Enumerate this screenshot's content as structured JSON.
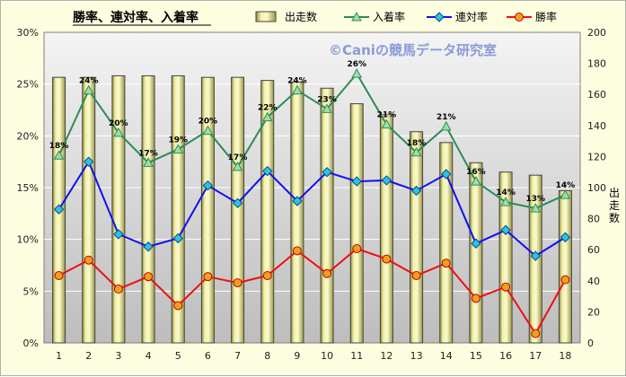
{
  "chart_data": {
    "type": "bar-line-combo",
    "title": "勝率、連対率、入着率",
    "watermark": "©Caniの競馬データ研究室",
    "categories": [
      "1",
      "2",
      "3",
      "4",
      "5",
      "6",
      "7",
      "8",
      "9",
      "10",
      "11",
      "12",
      "13",
      "14",
      "15",
      "16",
      "17",
      "18"
    ],
    "y_left": {
      "ylim": [
        0,
        30
      ],
      "ticks": [
        "0%",
        "5%",
        "10%",
        "15%",
        "20%",
        "25%",
        "30%"
      ]
    },
    "y_right": {
      "ylim": [
        0,
        200
      ],
      "ticks": [
        "0",
        "20",
        "40",
        "60",
        "80",
        "100",
        "120",
        "140",
        "160",
        "180",
        "200"
      ],
      "label": "出走数"
    },
    "series": [
      {
        "name": "出走数",
        "kind": "bar",
        "axis": "right",
        "color": "#e6e48c",
        "values": [
          171,
          171,
          172,
          172,
          172,
          171,
          171,
          169,
          168,
          164,
          154,
          147,
          136,
          129,
          116,
          110,
          108,
          98
        ]
      },
      {
        "name": "入着率",
        "kind": "line",
        "axis": "left",
        "color": "#2e8b57",
        "marker": "triangle",
        "values": [
          18.1,
          24.4,
          20.3,
          17.4,
          18.7,
          20.5,
          17.0,
          21.8,
          24.4,
          22.6,
          26.0,
          21.1,
          18.4,
          20.9,
          15.6,
          13.6,
          13.0,
          14.3
        ],
        "labels": [
          "18%",
          "24%",
          "20%",
          "17%",
          "19%",
          "20%",
          "17%",
          "22%",
          "24%",
          "23%",
          "26%",
          "21%",
          "18%",
          "21%",
          "16%",
          "14%",
          "13%",
          "14%"
        ]
      },
      {
        "name": "連対率",
        "kind": "line",
        "axis": "left",
        "color": "#1010ee",
        "marker": "diamond",
        "values": [
          12.9,
          17.5,
          10.5,
          9.3,
          10.1,
          15.2,
          13.5,
          16.6,
          13.7,
          16.5,
          15.6,
          15.7,
          14.7,
          16.3,
          9.6,
          10.9,
          8.4,
          10.2
        ]
      },
      {
        "name": "勝率",
        "kind": "line",
        "axis": "left",
        "color": "#ee1010",
        "marker": "circle",
        "values": [
          6.5,
          8.0,
          5.2,
          6.4,
          3.6,
          6.4,
          5.8,
          6.5,
          8.9,
          6.7,
          9.1,
          8.1,
          6.5,
          7.7,
          4.3,
          5.4,
          0.9,
          6.1
        ]
      }
    ]
  }
}
